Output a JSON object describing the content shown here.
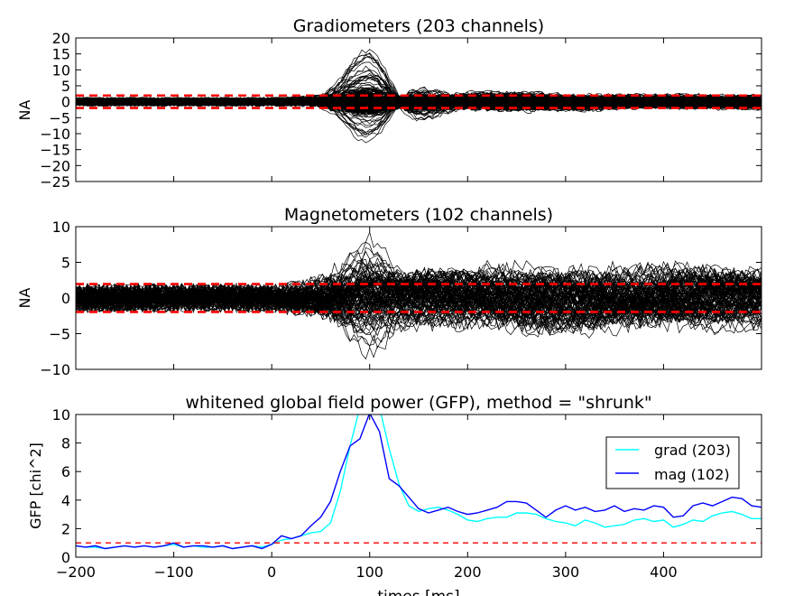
{
  "chart_data": [
    {
      "type": "line",
      "title": "Gradiometers (203 channels)",
      "xlabel": "",
      "ylabel": "NA",
      "xlim": [
        -200,
        500
      ],
      "ylim": [
        -25,
        20
      ],
      "yticks": [
        20,
        15,
        10,
        5,
        0,
        -5,
        -10,
        -15,
        -20,
        -25
      ],
      "xticks": [
        -200,
        -100,
        0,
        100,
        200,
        300,
        400
      ],
      "x_tick_labels_visible": false,
      "channel_count": 203,
      "trace_color": "#000000",
      "reference_lines": {
        "values": [
          -1.96,
          1.96
        ],
        "style": "dashed",
        "color": "#ff0000"
      },
      "description": "Dense band of black traces within about ±3 NA; transient deflection from 60 to 140 ms peaking near 100 ms at about +16 and -20 NA."
    },
    {
      "type": "line",
      "title": "Magnetometers (102 channels)",
      "xlabel": "",
      "ylabel": "NA",
      "xlim": [
        -200,
        500
      ],
      "ylim": [
        -10,
        10
      ],
      "yticks": [
        10,
        5,
        0,
        -5,
        -10
      ],
      "xticks": [
        -200,
        -100,
        0,
        100,
        200,
        300,
        400
      ],
      "x_tick_labels_visible": false,
      "channel_count": 102,
      "trace_color": "#000000",
      "reference_lines": {
        "values": [
          -1.96,
          1.96
        ],
        "style": "dashed",
        "color": "#ff0000"
      },
      "description": "Black traces within about ±2 NA before 0 ms, spreading to about ±5 NA afterwards, with extremes near +8.5 and -9 NA around 100 ms."
    },
    {
      "type": "line",
      "title": "whitened global field power (GFP), method = \"shrunk\"",
      "xlabel": "times [ms]",
      "ylabel": "GFP [chi^2]",
      "xlim": [
        -200,
        500
      ],
      "ylim": [
        0,
        10
      ],
      "yticks": [
        0,
        2,
        4,
        6,
        8,
        10
      ],
      "xticks": [
        -200,
        -100,
        0,
        100,
        200,
        300,
        400
      ],
      "legend_position": "upper-right",
      "reference_lines": {
        "values": [
          1.0
        ],
        "style": "dashed",
        "color": "#ff0000"
      },
      "series": [
        {
          "name": "grad (203)",
          "color": "#00ffff",
          "x": [
            -200,
            -190,
            -180,
            -170,
            -160,
            -150,
            -140,
            -130,
            -120,
            -110,
            -100,
            -90,
            -80,
            -70,
            -60,
            -50,
            -40,
            -30,
            -20,
            -10,
            0,
            10,
            20,
            30,
            40,
            50,
            60,
            70,
            80,
            90,
            100,
            110,
            120,
            130,
            140,
            150,
            160,
            170,
            180,
            190,
            200,
            210,
            220,
            230,
            240,
            250,
            260,
            270,
            280,
            290,
            300,
            310,
            320,
            330,
            340,
            350,
            360,
            370,
            380,
            390,
            400,
            410,
            420,
            430,
            440,
            450,
            460,
            470,
            480,
            490,
            500
          ],
          "y": [
            0.8,
            0.7,
            0.7,
            0.6,
            0.7,
            0.8,
            0.7,
            0.8,
            0.7,
            0.8,
            0.9,
            0.7,
            0.8,
            0.7,
            0.7,
            0.8,
            0.6,
            0.7,
            0.8,
            0.7,
            0.9,
            1.2,
            1.3,
            1.5,
            1.7,
            1.8,
            2.4,
            4.6,
            7.8,
            10.5,
            12.0,
            10.5,
            7.6,
            5.1,
            3.6,
            3.2,
            3.4,
            3.5,
            3.3,
            3.0,
            2.6,
            2.5,
            2.7,
            2.8,
            2.8,
            3.1,
            3.1,
            3.0,
            2.7,
            2.5,
            2.4,
            2.2,
            2.6,
            2.4,
            2.1,
            2.2,
            2.3,
            2.6,
            2.7,
            2.5,
            2.6,
            2.1,
            2.3,
            2.6,
            2.5,
            2.9,
            3.1,
            3.2,
            3.0,
            2.7,
            2.7
          ]
        },
        {
          "name": "mag (102)",
          "color": "#0000ff",
          "x": [
            -200,
            -190,
            -180,
            -170,
            -160,
            -150,
            -140,
            -130,
            -120,
            -110,
            -100,
            -90,
            -80,
            -70,
            -60,
            -50,
            -40,
            -30,
            -20,
            -10,
            0,
            10,
            20,
            30,
            40,
            50,
            60,
            70,
            80,
            90,
            100,
            110,
            120,
            130,
            140,
            150,
            160,
            170,
            180,
            190,
            200,
            210,
            220,
            230,
            240,
            250,
            260,
            270,
            280,
            290,
            300,
            310,
            320,
            330,
            340,
            350,
            360,
            370,
            380,
            390,
            400,
            410,
            420,
            430,
            440,
            450,
            460,
            470,
            480,
            490,
            500
          ],
          "y": [
            0.8,
            0.7,
            0.8,
            0.6,
            0.7,
            0.8,
            0.7,
            0.8,
            0.7,
            0.8,
            1.0,
            0.7,
            0.8,
            0.8,
            0.7,
            0.8,
            0.6,
            0.7,
            0.8,
            0.6,
            0.9,
            1.5,
            1.3,
            1.5,
            2.2,
            2.8,
            3.9,
            6.0,
            7.8,
            8.3,
            10.1,
            8.8,
            5.5,
            5.0,
            4.2,
            3.4,
            3.1,
            3.3,
            3.5,
            3.2,
            3.0,
            3.1,
            3.3,
            3.5,
            3.9,
            3.9,
            3.8,
            3.3,
            2.8,
            3.3,
            3.6,
            3.3,
            3.5,
            3.2,
            3.3,
            3.6,
            3.2,
            3.4,
            3.3,
            3.6,
            3.5,
            2.8,
            2.9,
            3.6,
            3.8,
            3.6,
            3.9,
            4.2,
            4.1,
            3.6,
            3.5
          ]
        }
      ]
    }
  ]
}
